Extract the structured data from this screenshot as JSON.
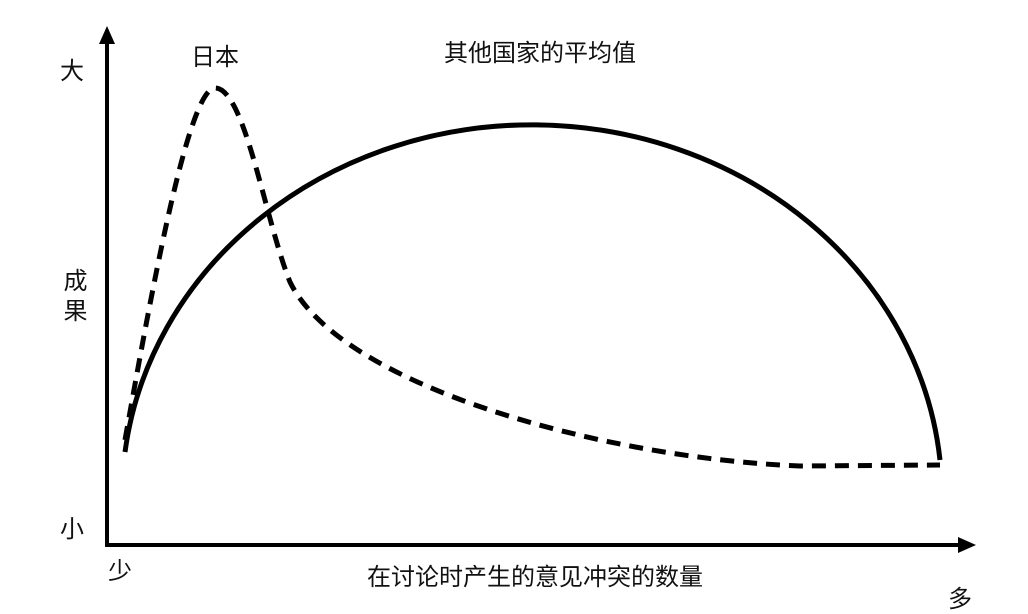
{
  "y_axis": {
    "label": "成果",
    "top": "大",
    "bottom": "小"
  },
  "x_axis": {
    "label": "在讨论时产生的意见冲突的数量",
    "left": "少",
    "right": "多"
  },
  "curves": [
    {
      "label": "日本"
    },
    {
      "label": "其他国家的平均值"
    }
  ]
}
